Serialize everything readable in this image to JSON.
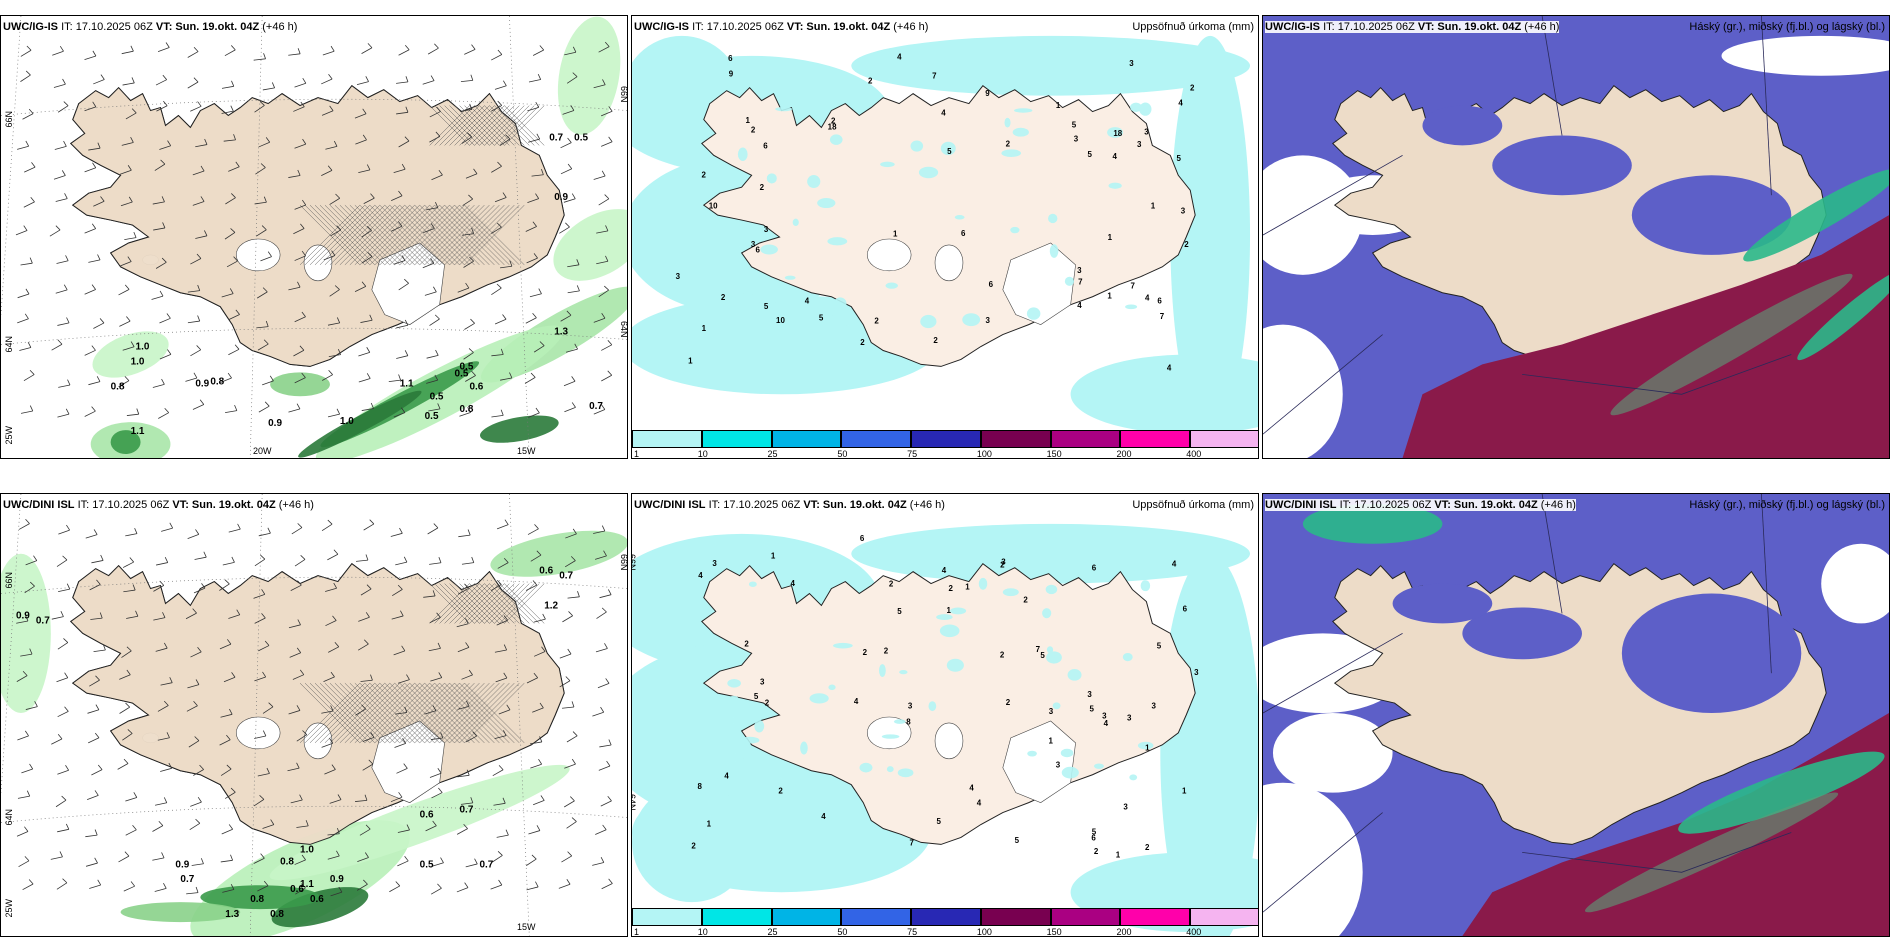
{
  "panels": [
    {
      "id": "p1",
      "model": "UWC/IG-IS",
      "issue": "IT: 17.10.2025 06Z",
      "valid": "VT: Sun. 19.okt. 04Z",
      "lead": "(+46 h)",
      "right": "",
      "type": "wind"
    },
    {
      "id": "p2",
      "model": "UWC/IG-IS",
      "issue": "IT: 17.10.2025 06Z",
      "valid": "VT: Sun. 19.okt. 04Z",
      "lead": "(+46 h)",
      "right": "Uppsöfnuð úrkoma (mm)",
      "type": "precip"
    },
    {
      "id": "p3",
      "model": "UWC/IG-IS",
      "issue": "IT: 17.10.2025 06Z",
      "valid": "VT: Sun. 19.okt. 04Z",
      "lead": "(+46 h)",
      "right": "Háský (gr.), miðský (fj.bl.) og lágský (bl.)",
      "type": "cloud"
    },
    {
      "id": "p4",
      "model": "UWC/DINI ISL",
      "issue": "IT: 17.10.2025 06Z",
      "valid": "VT: Sun. 19.okt. 04Z",
      "lead": "(+46 h)",
      "right": "",
      "type": "wind"
    },
    {
      "id": "p5",
      "model": "UWC/DINI ISL",
      "issue": "IT: 17.10.2025 06Z",
      "valid": "VT: Sun. 19.okt. 04Z",
      "lead": "(+46 h)",
      "right": "Uppsöfnuð úrkoma (mm)",
      "type": "precip"
    },
    {
      "id": "p6",
      "model": "UWC/DINI ISL",
      "issue": "IT: 17.10.2025 06Z",
      "valid": "VT: Sun. 19.okt. 04Z",
      "lead": "(+46 h)",
      "right": "Háský (gr.), miðský (fj.bl.) og lágský (bl.)",
      "type": "cloud"
    }
  ],
  "grid_labels": {
    "lat66": "66N",
    "lat64": "64N",
    "lon25": "25W",
    "lon20": "20W",
    "lon15": "15W"
  },
  "colorbar": {
    "ticks": [
      "1",
      "10",
      "25",
      "50",
      "75",
      "100",
      "150",
      "200",
      "400"
    ],
    "colors": [
      "#b4f5f5",
      "#00e6e6",
      "#00b4e6",
      "#3264e6",
      "#2828b4",
      "#780050",
      "#aa0082",
      "#ff00aa",
      "#f5b4f0"
    ]
  },
  "precip_values_p2": [
    "2",
    "3",
    "1",
    "4",
    "6",
    "5",
    "7",
    "2",
    "3",
    "1",
    "4",
    "2",
    "5",
    "3",
    "6",
    "1",
    "2",
    "4",
    "3",
    "7",
    "10",
    "6",
    "9",
    "18",
    "4",
    "2",
    "3",
    "5",
    "1",
    "2"
  ],
  "precip_values_p5": [
    "3",
    "2",
    "1",
    "5",
    "4",
    "6",
    "2",
    "3",
    "7",
    "4",
    "5",
    "2",
    "1",
    "3",
    "8",
    "4",
    "5",
    "2",
    "6",
    "3",
    "1",
    "2",
    "4",
    "3",
    "5",
    "2",
    "1",
    "4",
    "3",
    "2"
  ],
  "wind_values_p1": [
    "0.7",
    "0.5",
    "0.9",
    "1.0",
    "1.0",
    "0.8",
    "0.9",
    "0.8",
    "1.1",
    "0.5",
    "0.6",
    "0.5",
    "0.9",
    "0.5",
    "0.7",
    "1.3",
    "0.5",
    "0.8",
    "1.0",
    "1.1"
  ],
  "wind_values_p4": [
    "0.9",
    "0.7",
    "0.6",
    "0.7",
    "0.6",
    "0.7",
    "0.9",
    "0.8",
    "0.5",
    "0.7",
    "0.8",
    "1.1",
    "0.9",
    "0.6",
    "1.3",
    "0.8",
    "1.2",
    "1.0",
    "0.7",
    "0.6"
  ]
}
